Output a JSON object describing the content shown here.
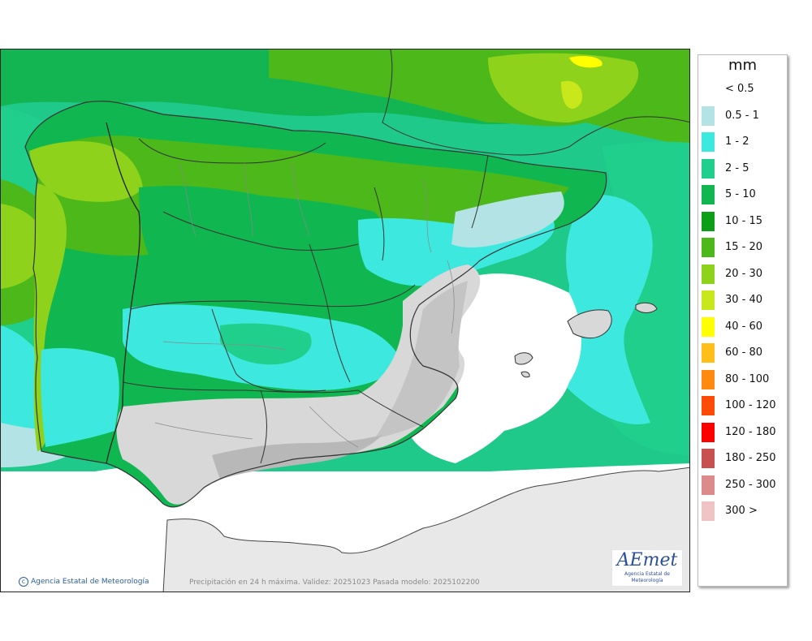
{
  "legend": {
    "title": "mm",
    "items": [
      {
        "label": "< 0.5",
        "color": "#ffffff"
      },
      {
        "label": "0.5 - 1",
        "color": "#b4e3e6"
      },
      {
        "label": "1 - 2",
        "color": "#3de8df"
      },
      {
        "label": "2 - 5",
        "color": "#21cf8c"
      },
      {
        "label": "5 - 10",
        "color": "#10b750"
      },
      {
        "label": "10 - 15",
        "color": "#0c9e16"
      },
      {
        "label": "15 - 20",
        "color": "#4db819"
      },
      {
        "label": "20 - 30",
        "color": "#8ed21c"
      },
      {
        "label": "30 - 40",
        "color": "#c8e81c"
      },
      {
        "label": "40 - 60",
        "color": "#ffff00"
      },
      {
        "label": "60 - 80",
        "color": "#ffbe1a"
      },
      {
        "label": "80 - 100",
        "color": "#ff8a0f"
      },
      {
        "label": "100 - 120",
        "color": "#ff4a08"
      },
      {
        "label": "120 - 180",
        "color": "#ff0000"
      },
      {
        "label": "180 - 250",
        "color": "#c85050"
      },
      {
        "label": "250 - 300",
        "color": "#dc8a8a"
      },
      {
        "label": "300 >",
        "color": "#f0c4c4"
      }
    ]
  },
  "footer": {
    "copyright": "Agencia Estatal de Meteorología",
    "caption": "Precipitación en 24 h máxima. Validez: 20251023 Pasada modelo: 2025102200"
  },
  "logo": {
    "word": "AEmet",
    "subtitle": "Agencia Estatal de Meteorología"
  }
}
